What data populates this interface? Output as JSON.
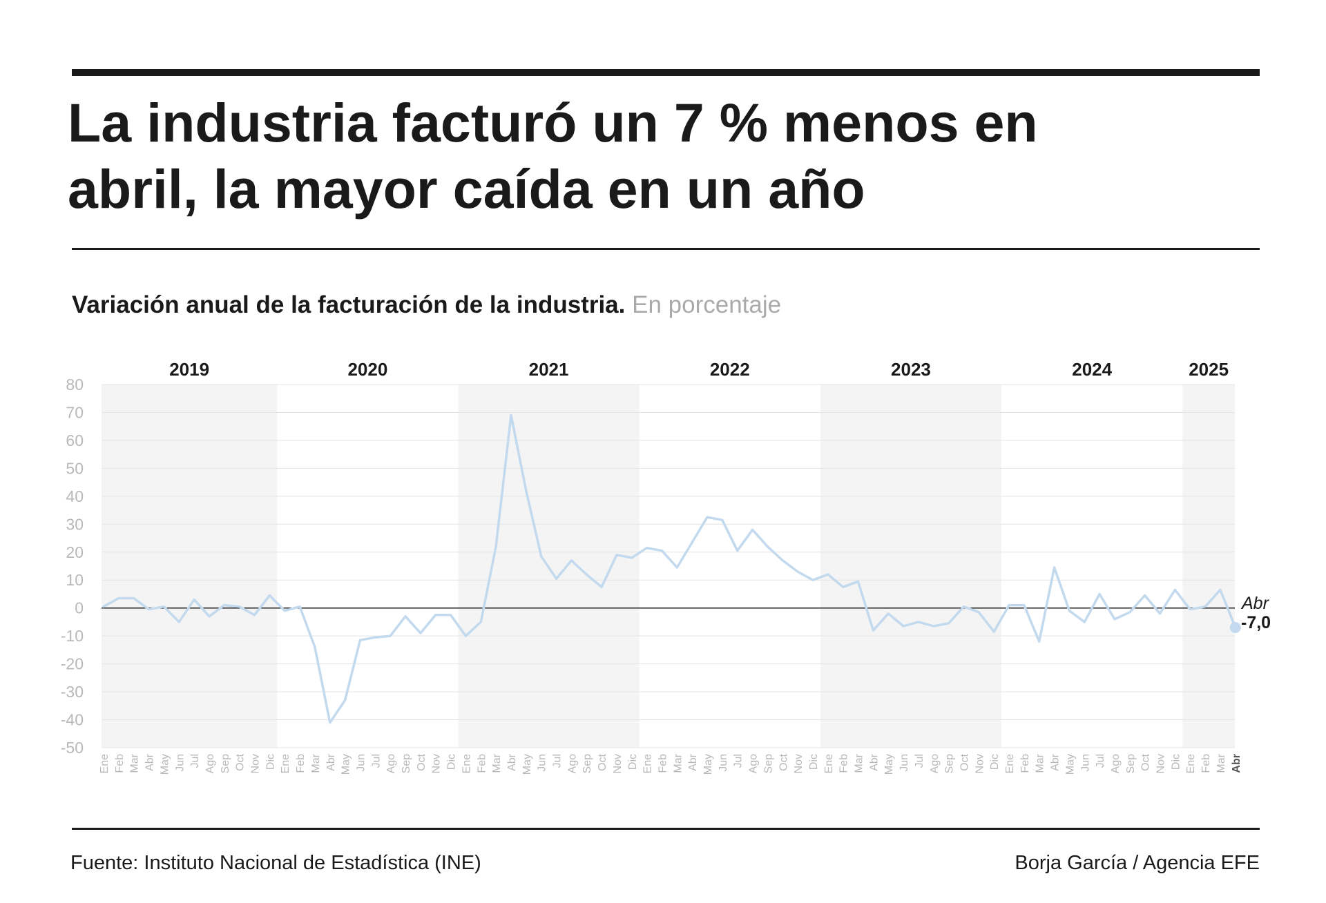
{
  "header": {
    "title": "La industria facturó un 7 % menos en abril, la mayor caída en un año"
  },
  "subtitle": {
    "main": "Variación anual de la facturación de la industria.",
    "unit": "En porcentaje"
  },
  "footer": {
    "source": "Fuente: Instituto Nacional de Estadística (INE)",
    "credit": "Borja García / Agencia EFE"
  },
  "colors": {
    "line": "#c2d9ee",
    "band": "#f4f4f4",
    "grid": "#e4e4e4",
    "zero_line": "#1a1a1a",
    "tick_text": "#b8b8b8",
    "text": "#1a1a1a"
  },
  "chart_data": {
    "type": "line",
    "title": "Variación anual de la facturación de la industria.",
    "unit_label": "En porcentaje",
    "ylim": [
      -50,
      80
    ],
    "yticks": [
      80,
      70,
      60,
      50,
      40,
      30,
      20,
      10,
      0,
      -10,
      -20,
      -30,
      -40,
      -50
    ],
    "grid": true,
    "alternating_year_bands": true,
    "years": [
      {
        "label": "2019",
        "months": 12
      },
      {
        "label": "2020",
        "months": 12
      },
      {
        "label": "2021",
        "months": 12
      },
      {
        "label": "2022",
        "months": 12
      },
      {
        "label": "2023",
        "months": 12
      },
      {
        "label": "2024",
        "months": 12
      },
      {
        "label": "2025",
        "months": 4
      }
    ],
    "categories": [
      "Ene",
      "Feb",
      "Mar",
      "Abr",
      "May",
      "Jun",
      "Jul",
      "Ago",
      "Sep",
      "Oct",
      "Nov",
      "Dic",
      "Ene",
      "Feb",
      "Mar",
      "Abr",
      "May",
      "Jun",
      "Jul",
      "Ago",
      "Sep",
      "Oct",
      "Nov",
      "Dic",
      "Ene",
      "Feb",
      "Mar",
      "Abr",
      "May",
      "Jun",
      "Jul",
      "Ago",
      "Sep",
      "Oct",
      "Nov",
      "Dic",
      "Ene",
      "Feb",
      "Mar",
      "Abr",
      "May",
      "Jun",
      "Jul",
      "Ago",
      "Sep",
      "Oct",
      "Nov",
      "Dic",
      "Ene",
      "Feb",
      "Mar",
      "Abr",
      "May",
      "Jun",
      "Jul",
      "Ago",
      "Sep",
      "Oct",
      "Nov",
      "Dic",
      "Ene",
      "Feb",
      "Mar",
      "Abr",
      "May",
      "Jun",
      "Jul",
      "Ago",
      "Sep",
      "Oct",
      "Nov",
      "Dic",
      "Ene",
      "Feb",
      "Mar",
      "Abr"
    ],
    "series": [
      {
        "values": [
          0.5,
          3.5,
          3.5,
          -0.5,
          0.5,
          -5,
          3,
          -3,
          1,
          0.5,
          -2.5,
          4.5,
          -1,
          0.5,
          -14,
          -41,
          -33,
          -11.5,
          -10.5,
          -10,
          -3,
          -9,
          -2.5,
          -2.5,
          -10,
          -5,
          22,
          69,
          42,
          18.5,
          10.5,
          17,
          12,
          7.5,
          19,
          18,
          21.5,
          20.5,
          14.5,
          23.5,
          32.5,
          31.5,
          20.5,
          28,
          22,
          17,
          13,
          10,
          12,
          7.5,
          9.5,
          -8,
          -2,
          -6.5,
          -5,
          -6.5,
          -5.5,
          0.5,
          -1.5,
          -8.5,
          1,
          1,
          -12,
          14.5,
          -1,
          -5,
          5,
          -4,
          -1.5,
          4.5,
          -2,
          6.5,
          -0.5,
          0.5,
          6.5,
          -7.0
        ]
      }
    ],
    "annotation": {
      "month": "Abr",
      "value": "-7,0"
    },
    "highlight_last_tick": "Abr"
  }
}
